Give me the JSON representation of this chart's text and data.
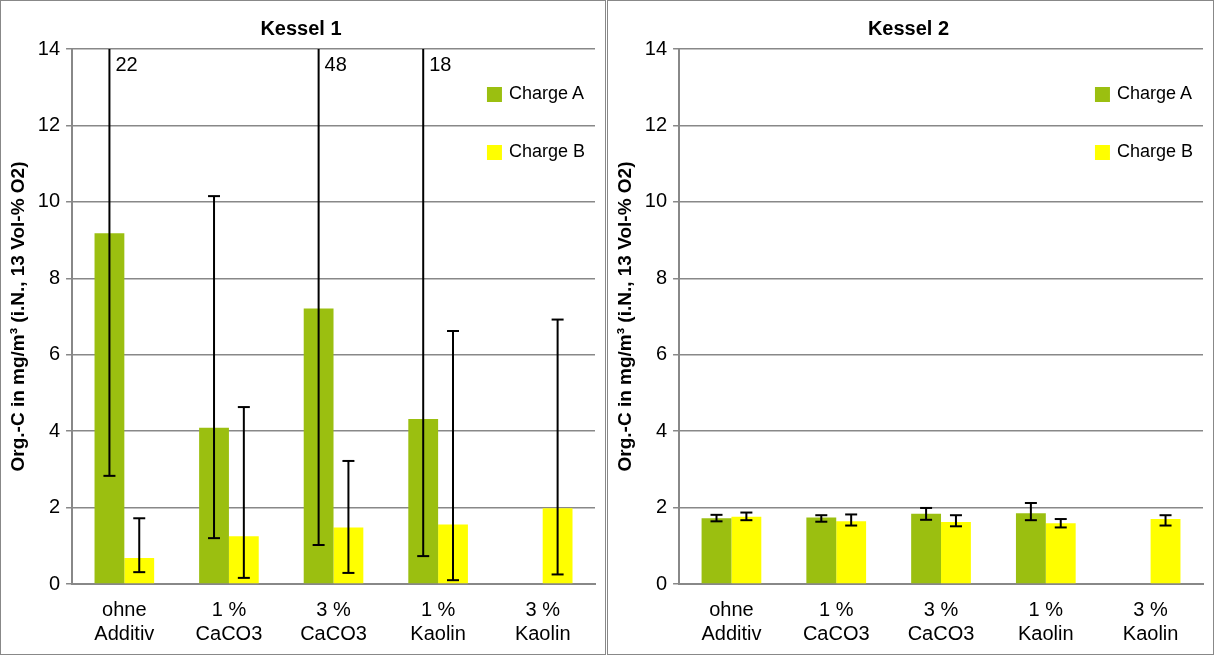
{
  "chart_data": [
    {
      "type": "bar",
      "title": "Kessel 1",
      "ylabel": "Org.-C in mg/m³ (i.N., 13 Vol-% O2)",
      "categories": [
        "ohne Additiv",
        "1 % CaCO3",
        "3 % CaCO3",
        "1 % Kaolin",
        "3 % Kaolin"
      ],
      "series": [
        {
          "name": "Charge A",
          "color": "#9bbf10",
          "values": [
            9.18,
            4.09,
            7.21,
            4.32,
            null
          ],
          "errors": [
            [
              2.83,
              14
            ],
            [
              1.2,
              10.15
            ],
            [
              1.02,
              14
            ],
            [
              0.73,
              14
            ],
            null
          ]
        },
        {
          "name": "Charge B",
          "color": "#ffff00",
          "values": [
            0.68,
            1.25,
            1.48,
            1.56,
            1.98
          ],
          "errors": [
            [
              0.31,
              1.72
            ],
            [
              0.16,
              4.63
            ],
            [
              0.29,
              3.22
            ],
            [
              0.1,
              6.62
            ],
            [
              0.25,
              6.92
            ]
          ]
        }
      ],
      "ylim": [
        0,
        14
      ],
      "yticks": [
        0,
        2,
        4,
        6,
        8,
        10,
        12,
        14
      ],
      "grid": "y",
      "legend": "top right",
      "annotations": [
        "22",
        "48",
        "18"
      ]
    },
    {
      "type": "bar",
      "title": "Kessel 2",
      "ylabel": "Org.-C in mg/m³ (i.N., 13 Vol-% O2)",
      "categories": [
        "ohne Additiv",
        "1 % CaCO3",
        "3 % CaCO3",
        "1 % Kaolin",
        "3 % Kaolin"
      ],
      "series": [
        {
          "name": "Charge A",
          "color": "#9bbf10",
          "values": [
            1.72,
            1.74,
            1.84,
            1.85,
            null
          ],
          "errors": [
            [
              1.64,
              1.81
            ],
            [
              1.63,
              1.8
            ],
            [
              1.68,
              1.99
            ],
            [
              1.67,
              2.12
            ],
            null
          ]
        },
        {
          "name": "Charge B",
          "color": "#ffff00",
          "values": [
            1.76,
            1.64,
            1.62,
            1.59,
            1.7
          ],
          "errors": [
            [
              1.67,
              1.87
            ],
            [
              1.53,
              1.82
            ],
            [
              1.51,
              1.8
            ],
            [
              1.48,
              1.7
            ],
            [
              1.53,
              1.8
            ]
          ]
        }
      ],
      "ylim": [
        0,
        14
      ],
      "yticks": [
        0,
        2,
        4,
        6,
        8,
        10,
        12,
        14
      ],
      "grid": "y",
      "legend": "top right"
    }
  ]
}
